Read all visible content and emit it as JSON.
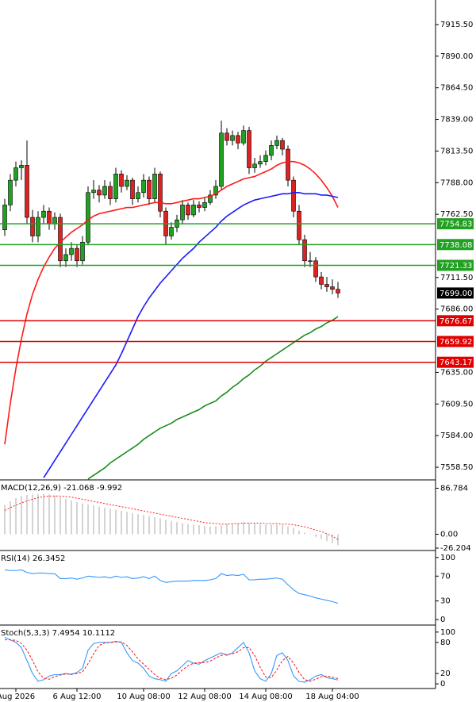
{
  "chart_data": [
    {
      "type": "candlestick",
      "ylim": [
        7548.3,
        7935.3
      ],
      "yticks": [
        {
          "value": 7915.5,
          "label": "7915.50"
        },
        {
          "value": 7890,
          "label": "7890.00"
        },
        {
          "value": 7864.5,
          "label": "7864.50"
        },
        {
          "value": 7839,
          "label": "7839.00"
        },
        {
          "value": 7813.5,
          "label": "7813.50"
        },
        {
          "value": 7788,
          "label": "7788.00"
        },
        {
          "value": 7762.5,
          "label": "7762.50"
        },
        {
          "value": 7711.5,
          "label": "7711.50"
        },
        {
          "value": 7686,
          "label": "7686.00"
        },
        {
          "value": 7635,
          "label": "7635.00"
        },
        {
          "value": 7609.5,
          "label": "7609.50"
        },
        {
          "value": 7584,
          "label": "7584.00"
        },
        {
          "value": 7558.5,
          "label": "7558.50"
        }
      ],
      "categories": [
        null,
        null,
        "Aug 2026",
        null,
        null,
        null,
        null,
        null,
        null,
        null,
        null,
        null,
        null,
        "6 Aug 12:00",
        null,
        null,
        null,
        null,
        null,
        null,
        null,
        null,
        null,
        null,
        null,
        "10 Aug 08:00",
        null,
        null,
        null,
        null,
        null,
        null,
        null,
        null,
        null,
        null,
        "12 Aug 08:00",
        null,
        null,
        null,
        null,
        null,
        null,
        null,
        null,
        null,
        null,
        "14 Aug 08:00",
        null,
        null,
        null,
        null,
        null,
        null,
        null,
        null,
        null,
        null,
        null,
        "18 Aug 04:00",
        null
      ],
      "up_color": "#22a022",
      "down_color": "#dd2222",
      "ohlc": [
        [
          7750,
          7775,
          7745,
          7770
        ],
        [
          7770,
          7795,
          7765,
          7790
        ],
        [
          7790,
          7805,
          7785,
          7800
        ],
        [
          7800,
          7806,
          7790,
          7802
        ],
        [
          7802,
          7822,
          7755,
          7760
        ],
        [
          7760,
          7766,
          7740,
          7745
        ],
        [
          7745,
          7765,
          7740,
          7760
        ],
        [
          7760,
          7770,
          7755,
          7765
        ],
        [
          7765,
          7768,
          7750,
          7755
        ],
        [
          7755,
          7764,
          7750,
          7760
        ],
        [
          7760,
          7763,
          7720,
          7725
        ],
        [
          7725,
          7735,
          7720,
          7730
        ],
        [
          7730,
          7740,
          7725,
          7735
        ],
        [
          7735,
          7738,
          7720,
          7725
        ],
        [
          7725,
          7745,
          7722,
          7740
        ],
        [
          7740,
          7785,
          7738,
          7780
        ],
        [
          7780,
          7790,
          7775,
          7782
        ],
        [
          7782,
          7786,
          7772,
          7778
        ],
        [
          7778,
          7790,
          7775,
          7785
        ],
        [
          7785,
          7789,
          7770,
          7775
        ],
        [
          7775,
          7800,
          7772,
          7795
        ],
        [
          7795,
          7798,
          7780,
          7785
        ],
        [
          7785,
          7794,
          7782,
          7790
        ],
        [
          7790,
          7792,
          7770,
          7775
        ],
        [
          7775,
          7785,
          7772,
          7780
        ],
        [
          7780,
          7795,
          7776,
          7790
        ],
        [
          7790,
          7793,
          7770,
          7775
        ],
        [
          7775,
          7800,
          7772,
          7795
        ],
        [
          7795,
          7797,
          7760,
          7765
        ],
        [
          7765,
          7768,
          7738,
          7745
        ],
        [
          7745,
          7756,
          7742,
          7752
        ],
        [
          7752,
          7762,
          7748,
          7758
        ],
        [
          7758,
          7774,
          7755,
          7770
        ],
        [
          7770,
          7772,
          7758,
          7762
        ],
        [
          7762,
          7774,
          7760,
          7770
        ],
        [
          7770,
          7773,
          7764,
          7768
        ],
        [
          7768,
          7776,
          7765,
          7772
        ],
        [
          7772,
          7782,
          7770,
          7778
        ],
        [
          7778,
          7790,
          7775,
          7785
        ],
        [
          7785,
          7838,
          7782,
          7828
        ],
        [
          7828,
          7832,
          7818,
          7822
        ],
        [
          7822,
          7830,
          7818,
          7826
        ],
        [
          7826,
          7829,
          7815,
          7820
        ],
        [
          7820,
          7834,
          7818,
          7830
        ],
        [
          7830,
          7833,
          7795,
          7800
        ],
        [
          7800,
          7808,
          7796,
          7803
        ],
        [
          7803,
          7810,
          7800,
          7805
        ],
        [
          7805,
          7814,
          7802,
          7810
        ],
        [
          7810,
          7822,
          7806,
          7818
        ],
        [
          7818,
          7826,
          7815,
          7822
        ],
        [
          7822,
          7824,
          7810,
          7815
        ],
        [
          7815,
          7818,
          7785,
          7790
        ],
        [
          7790,
          7793,
          7760,
          7765
        ],
        [
          7765,
          7770,
          7738,
          7742
        ],
        [
          7742,
          7746,
          7720,
          7725
        ],
        [
          7725,
          7732,
          7720,
          7725
        ],
        [
          7725,
          7728,
          7708,
          7712
        ],
        [
          7712,
          7716,
          7702,
          7706
        ],
        [
          7706,
          7712,
          7700,
          7704
        ],
        [
          7704,
          7710,
          7698,
          7702
        ],
        [
          7702,
          7708,
          7695,
          7699
        ]
      ],
      "series": [
        {
          "color": "#ff1a1a",
          "values": [
            7577,
            7610,
            7638,
            7662,
            7682,
            7698,
            7710,
            7720,
            7728,
            7735,
            7740,
            7744,
            7748,
            7751,
            7754,
            7758,
            7761,
            7763,
            7764,
            7765,
            7766,
            7767,
            7768,
            7768,
            7769,
            7770,
            7771,
            7772,
            7772,
            7771,
            7771,
            7772,
            7773,
            7774,
            7775,
            7775,
            7776,
            7777,
            7779,
            7782,
            7785,
            7787,
            7789,
            7791,
            7792,
            7793,
            7795,
            7797,
            7799,
            7802,
            7804,
            7805,
            7805,
            7804,
            7802,
            7799,
            7795,
            7790,
            7784,
            7777,
            7768
          ]
        },
        {
          "color": "#1a1aff",
          "values": [
            null,
            null,
            null,
            null,
            null,
            null,
            null,
            7550,
            7557,
            7564,
            7571,
            7578,
            7585,
            7592,
            7599,
            7606,
            7613,
            7620,
            7627,
            7634,
            7641,
            7650,
            7660,
            7670,
            7680,
            7688,
            7695,
            7701,
            7707,
            7712,
            7717,
            7722,
            7727,
            7731,
            7735,
            7740,
            7744,
            7748,
            7752,
            7757,
            7761,
            7764,
            7767,
            7770,
            7772,
            7774,
            7775,
            7776,
            7777,
            7778,
            7779,
            7779,
            7780,
            7780,
            7779,
            7779,
            7779,
            7778,
            7778,
            7777,
            7776
          ]
        },
        {
          "color": "#1a8c1a",
          "values": [
            null,
            null,
            null,
            null,
            null,
            null,
            null,
            null,
            null,
            null,
            null,
            null,
            null,
            null,
            null,
            7549,
            7552,
            7555,
            7558,
            7562,
            7565,
            7568,
            7571,
            7574,
            7577,
            7581,
            7584,
            7587,
            7590,
            7592,
            7594,
            7597,
            7599,
            7601,
            7603,
            7605,
            7608,
            7610,
            7612,
            7616,
            7619,
            7623,
            7626,
            7630,
            7633,
            7637,
            7640,
            7644,
            7647,
            7650,
            7653,
            7656,
            7659,
            7662,
            7665,
            7667,
            7670,
            7672,
            7675,
            7677,
            7680
          ]
        }
      ],
      "levels": [
        {
          "value": 7754.83,
          "color": "#22a022"
        },
        {
          "value": 7738.08,
          "color": "#22a022"
        },
        {
          "value": 7721.33,
          "color": "#22a022"
        },
        {
          "value": 7676.67,
          "color": "#e00000"
        },
        {
          "value": 7659.92,
          "color": "#e00000"
        },
        {
          "value": 7643.17,
          "color": "#e00000"
        }
      ],
      "current_price": {
        "value": 7699,
        "label": "7699.00"
      }
    },
    {
      "type": "macd",
      "label": "MACD(12,26,9) -21.068 -9.992",
      "ylim": [
        -26.204,
        101
      ],
      "yticks": [
        86.784,
        {
          "value": 0,
          "label": "0.00"
        },
        -26.204
      ],
      "series": [
        {
          "color": "#b8b8b8",
          "values": [
            55,
            62,
            68,
            72,
            74,
            75,
            76,
            76,
            75,
            73,
            70,
            67,
            64,
            61,
            58,
            56,
            54,
            52,
            50,
            48,
            46,
            44,
            42,
            40,
            38,
            36,
            34,
            32,
            30,
            27,
            25,
            23,
            21,
            19,
            18,
            17,
            16,
            15,
            15,
            17,
            19,
            20,
            21,
            22,
            21,
            20,
            19,
            18,
            18,
            18,
            17,
            15,
            11,
            7,
            3,
            -1,
            -5,
            -9,
            -13,
            -17,
            -21.068
          ]
        },
        {
          "color": "#ff2020",
          "values": [
            45,
            50,
            55,
            59,
            63,
            66,
            69,
            71,
            72,
            72,
            72,
            71,
            70,
            68,
            66,
            64,
            62,
            60,
            58,
            56,
            54,
            52,
            50,
            48,
            46,
            44,
            42,
            40,
            38,
            36,
            34,
            32,
            30,
            28,
            26,
            24,
            22,
            21,
            20,
            19,
            19,
            20,
            20,
            21,
            21,
            21,
            21,
            20,
            20,
            20,
            19,
            19,
            18,
            16,
            14,
            11,
            8,
            5,
            1,
            -4,
            -9.992
          ]
        }
      ]
    },
    {
      "type": "line",
      "label": "RSI(14) 26.3452",
      "ylim": [
        -5,
        110
      ],
      "yticks": [
        0,
        30,
        70,
        100
      ],
      "series": [
        {
          "color": "#3399ff",
          "values": [
            80,
            79,
            79,
            80,
            76,
            74,
            75,
            75,
            74,
            74,
            66,
            66,
            67,
            65,
            67,
            70,
            69,
            68,
            69,
            67,
            70,
            68,
            69,
            66,
            67,
            69,
            66,
            70,
            63,
            60,
            61,
            62,
            62,
            62,
            63,
            63,
            63,
            64,
            66,
            74,
            71,
            72,
            71,
            73,
            64,
            64,
            65,
            65,
            66,
            67,
            65,
            56,
            48,
            42,
            40,
            38,
            35,
            33,
            31,
            29,
            26.3452
          ]
        }
      ]
    },
    {
      "type": "line",
      "label": "Stoch(5,3,3) 7.4954 10.1112",
      "ylim": [
        -9,
        112
      ],
      "yticks": [
        0,
        20,
        80,
        100
      ],
      "series": [
        {
          "color": "#3399ff",
          "values": [
            90,
            85,
            80,
            70,
            45,
            20,
            5,
            8,
            15,
            18,
            18,
            20,
            18,
            22,
            30,
            65,
            78,
            80,
            80,
            80,
            82,
            80,
            60,
            45,
            40,
            30,
            15,
            10,
            8,
            5,
            20,
            25,
            35,
            45,
            40,
            38,
            45,
            50,
            55,
            60,
            55,
            60,
            70,
            80,
            60,
            25,
            10,
            5,
            20,
            55,
            60,
            45,
            15,
            5,
            3,
            8,
            15,
            18,
            12,
            10,
            7.4954
          ]
        },
        {
          "color": "#ff2020",
          "dash": true,
          "values": [
            85,
            85,
            84,
            78,
            65,
            45,
            23,
            11,
            9,
            14,
            17,
            19,
            19,
            20,
            23,
            39,
            58,
            74,
            79,
            80,
            81,
            81,
            74,
            62,
            48,
            38,
            28,
            18,
            11,
            8,
            11,
            17,
            27,
            35,
            40,
            41,
            41,
            44,
            50,
            55,
            57,
            58,
            62,
            70,
            70,
            55,
            32,
            13,
            12,
            27,
            45,
            53,
            40,
            22,
            8,
            5,
            9,
            14,
            15,
            13,
            10.1112
          ]
        }
      ]
    }
  ]
}
